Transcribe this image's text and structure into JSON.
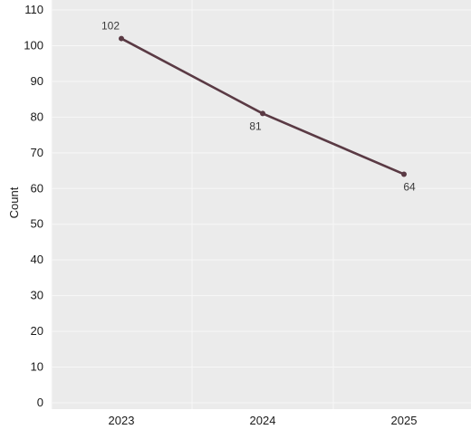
{
  "chart_data": {
    "type": "line",
    "categories": [
      "2023",
      "2024",
      "2025"
    ],
    "values": [
      102,
      81,
      64
    ],
    "data_labels": [
      "102",
      "81",
      "64"
    ],
    "title": "",
    "xlabel": "",
    "ylabel": "Count",
    "ylim": [
      0,
      110
    ],
    "yticks": [
      0,
      10,
      20,
      30,
      40,
      50,
      60,
      70,
      80,
      90,
      100,
      110
    ],
    "grid": true,
    "legend": "none",
    "colors": {
      "line": "#5a3a44",
      "panel": "#ebebeb",
      "grid": "#f7f7f7"
    }
  }
}
